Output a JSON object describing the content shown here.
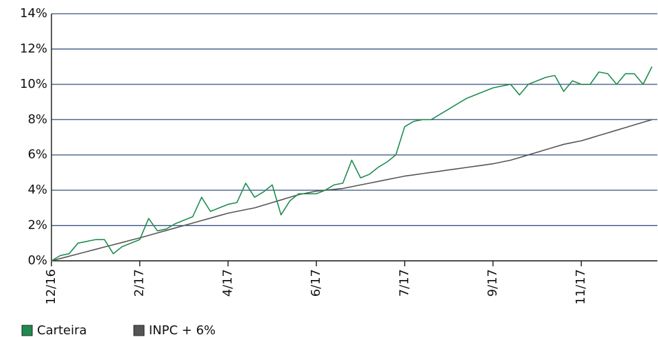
{
  "chart_data": {
    "type": "line",
    "categories": [
      "12/16",
      null,
      null,
      null,
      null,
      null,
      null,
      null,
      null,
      null,
      "2/17",
      null,
      null,
      null,
      null,
      null,
      null,
      null,
      null,
      null,
      "4/17",
      null,
      null,
      null,
      null,
      null,
      null,
      null,
      null,
      null,
      "6/17",
      null,
      null,
      null,
      null,
      null,
      null,
      null,
      null,
      null,
      "7/17",
      null,
      null,
      null,
      null,
      null,
      null,
      null,
      null,
      null,
      "9/17",
      null,
      null,
      null,
      null,
      null,
      null,
      null,
      null,
      null,
      "11/17",
      null,
      null,
      null,
      null,
      null,
      null,
      null,
      null
    ],
    "series": [
      {
        "name": "Carteira",
        "color": "#1e8c4e",
        "values": [
          0,
          0.3,
          0.4,
          1.0,
          1.1,
          1.2,
          1.2,
          0.4,
          0.8,
          1.0,
          1.2,
          2.4,
          1.7,
          1.8,
          2.1,
          2.3,
          2.5,
          3.6,
          2.8,
          3.0,
          3.2,
          3.3,
          4.4,
          3.6,
          3.9,
          4.3,
          2.6,
          3.4,
          3.8,
          3.8,
          3.8,
          4.0,
          4.3,
          4.4,
          5.7,
          4.7,
          4.9,
          5.3,
          5.6,
          6.0,
          7.6,
          7.9,
          8.0,
          8.0,
          8.3,
          8.6,
          8.9,
          9.2,
          9.4,
          9.6,
          9.8,
          9.9,
          10.0,
          9.4,
          10.0,
          10.2,
          10.4,
          10.5,
          9.6,
          10.2,
          10.0,
          10.0,
          10.7,
          10.6,
          10.0,
          10.6,
          10.6,
          10.0,
          11.0
        ]
      },
      {
        "name": "INPC + 6%",
        "color": "#555555",
        "values": [
          0,
          0.13,
          0.26,
          0.39,
          0.52,
          0.65,
          0.78,
          0.91,
          1.04,
          1.17,
          1.3,
          1.44,
          1.58,
          1.72,
          1.86,
          2.0,
          2.14,
          2.28,
          2.42,
          2.56,
          2.7,
          2.8,
          2.9,
          3.0,
          3.15,
          3.3,
          3.45,
          3.6,
          3.75,
          3.85,
          3.95,
          4.0,
          4.05,
          4.1,
          4.2,
          4.3,
          4.4,
          4.5,
          4.6,
          4.7,
          4.8,
          4.87,
          4.94,
          5.01,
          5.08,
          5.15,
          5.22,
          5.29,
          5.36,
          5.43,
          5.5,
          5.6,
          5.7,
          5.85,
          6.0,
          6.15,
          6.3,
          6.45,
          6.6,
          6.7,
          6.8,
          6.95,
          7.1,
          7.25,
          7.4,
          7.55,
          7.7,
          7.85,
          8.0
        ]
      }
    ],
    "ylim": [
      0,
      14
    ],
    "yticks": [
      {
        "value": 0,
        "label": "0%"
      },
      {
        "value": 2,
        "label": "2%"
      },
      {
        "value": 4,
        "label": "4%"
      },
      {
        "value": 6,
        "label": "6%"
      },
      {
        "value": 8,
        "label": "8%"
      },
      {
        "value": 10,
        "label": "10%"
      },
      {
        "value": 12,
        "label": "12%"
      },
      {
        "value": 14,
        "label": "14%"
      }
    ],
    "grid": true
  }
}
